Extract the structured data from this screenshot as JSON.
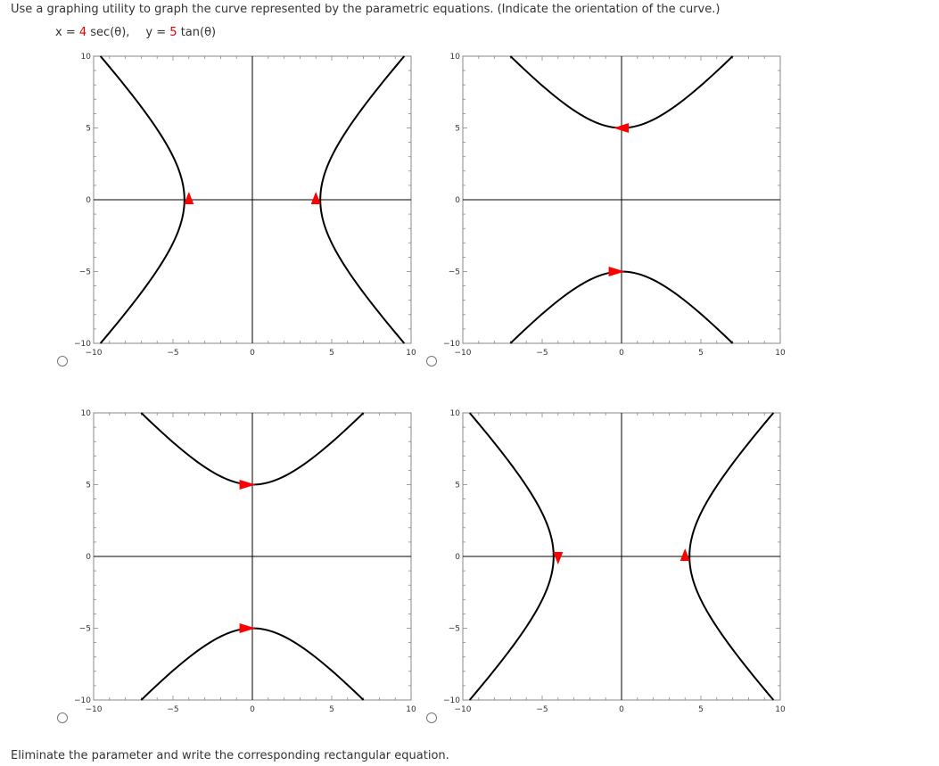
{
  "question": "Use a graphing utility to graph the curve represented by the parametric equations. (Indicate the orientation of the curve.)",
  "equations": {
    "x_label": "x = ",
    "x_coef": "4",
    "x_func": " sec(θ),",
    "y_label": "y = ",
    "y_coef": "5",
    "y_func": " tan(θ)"
  },
  "tick_labels": [
    "−10",
    "−5",
    "0",
    "5",
    "10"
  ],
  "colors": {
    "curve": "#000000",
    "arrow": "#ff0000",
    "frame": "#000000"
  },
  "options": [
    {
      "id": "option-a",
      "orientation": "horizontal-hyperbola",
      "arrows": "both-up"
    },
    {
      "id": "option-b",
      "orientation": "vertical-hyperbola",
      "arrows": "top-left-bottom-right"
    },
    {
      "id": "option-c",
      "orientation": "vertical-hyperbola",
      "arrows": "both-right"
    },
    {
      "id": "option-d",
      "orientation": "horizontal-hyperbola",
      "arrows": "left-down-right-up"
    }
  ],
  "chart_data": [
    {
      "type": "line",
      "option": "A",
      "xlim": [
        -10,
        10
      ],
      "ylim": [
        -10,
        10
      ],
      "grid": false,
      "series": [
        {
          "points": [
            [
              -9.57,
              10
            ],
            [
              -4,
              0
            ],
            [
              -9.57,
              -10
            ]
          ],
          "orientation": "upward"
        },
        {
          "points": [
            [
              9.57,
              10
            ],
            [
              4,
              0
            ],
            [
              9.57,
              -10
            ]
          ],
          "orientation": "upward"
        }
      ],
      "arrows": [
        {
          "at": [
            -4,
            0
          ],
          "dir": "up"
        },
        {
          "at": [
            4,
            0
          ],
          "dir": "up"
        }
      ]
    },
    {
      "type": "line",
      "option": "B",
      "xlim": [
        -10,
        10
      ],
      "ylim": [
        -10,
        10
      ],
      "grid": false,
      "series": [
        {
          "points": [
            [
              -7,
              10
            ],
            [
              0,
              5
            ],
            [
              7,
              10
            ]
          ]
        },
        {
          "points": [
            [
              -7,
              -10
            ],
            [
              0,
              -5
            ],
            [
              7,
              -10
            ]
          ]
        }
      ],
      "arrows": [
        {
          "at": [
            0,
            5
          ],
          "dir": "left"
        },
        {
          "at": [
            0,
            -5
          ],
          "dir": "right"
        }
      ]
    },
    {
      "type": "line",
      "option": "C",
      "xlim": [
        -10,
        10
      ],
      "ylim": [
        -10,
        10
      ],
      "grid": false,
      "series": [
        {
          "points": [
            [
              -7,
              10
            ],
            [
              0,
              5
            ],
            [
              7,
              10
            ]
          ]
        },
        {
          "points": [
            [
              -7,
              -10
            ],
            [
              0,
              -5
            ],
            [
              7,
              -10
            ]
          ]
        }
      ],
      "arrows": [
        {
          "at": [
            0,
            5
          ],
          "dir": "right"
        },
        {
          "at": [
            0,
            -5
          ],
          "dir": "right"
        }
      ]
    },
    {
      "type": "line",
      "option": "D",
      "xlim": [
        -10,
        10
      ],
      "ylim": [
        -10,
        10
      ],
      "grid": false,
      "series": [
        {
          "points": [
            [
              -9.57,
              10
            ],
            [
              -4,
              0
            ],
            [
              -9.57,
              -10
            ]
          ]
        },
        {
          "points": [
            [
              9.57,
              10
            ],
            [
              4,
              0
            ],
            [
              9.57,
              -10
            ]
          ]
        }
      ],
      "arrows": [
        {
          "at": [
            -4,
            0
          ],
          "dir": "down"
        },
        {
          "at": [
            4,
            0
          ],
          "dir": "up"
        }
      ]
    }
  ],
  "bottom_text": "Eliminate the parameter and write the corresponding rectangular equation."
}
